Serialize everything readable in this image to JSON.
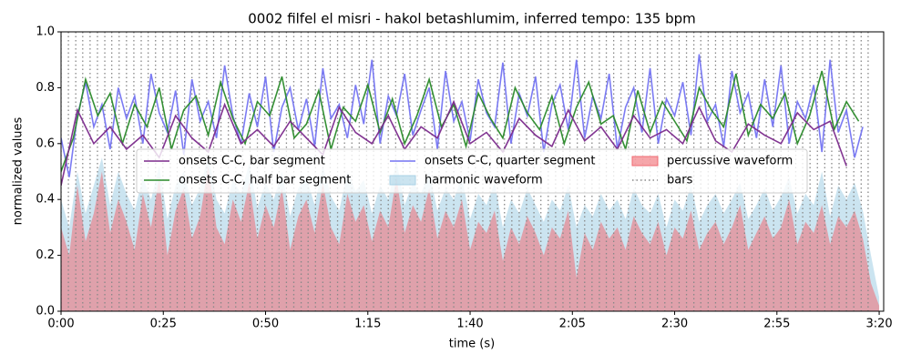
{
  "chart_data": {
    "type": "line",
    "title": "0002 filfel el misri - hakol betashlumim, inferred tempo: 135 bpm",
    "x_label": "time (s)",
    "y_label": "normalized values",
    "xlim": [
      0,
      201.1
    ],
    "ylim": [
      0,
      1
    ],
    "xticks": [
      {
        "value": 0,
        "label": "0:00"
      },
      {
        "value": 25,
        "label": "0:25"
      },
      {
        "value": 50,
        "label": "0:50"
      },
      {
        "value": 75,
        "label": "1:15"
      },
      {
        "value": 100,
        "label": "1:40"
      },
      {
        "value": 125,
        "label": "2:05"
      },
      {
        "value": 150,
        "label": "2:30"
      },
      {
        "value": 175,
        "label": "2:55"
      },
      {
        "value": 200,
        "label": "3:20"
      }
    ],
    "yticks": [
      {
        "value": 0,
        "label": "0.0"
      },
      {
        "value": 0.2,
        "label": "0.2"
      },
      {
        "value": 0.4,
        "label": "0.4"
      },
      {
        "value": 0.6,
        "label": "0.6"
      },
      {
        "value": 0.8,
        "label": "0.8"
      },
      {
        "value": 1,
        "label": "1.0"
      }
    ],
    "legend_position": "center",
    "series": [
      {
        "name": "onsets C-C, bar segment",
        "kind": "line",
        "color": "#7b2a8c",
        "x": [
          0,
          4,
          8,
          12,
          16,
          20,
          24,
          28,
          32,
          36,
          40,
          44,
          48,
          52,
          56,
          60,
          64,
          68,
          72,
          76,
          80,
          84,
          88,
          92,
          96,
          100,
          104,
          108,
          112,
          116,
          120,
          124,
          128,
          132,
          136,
          140,
          144,
          148,
          152,
          156,
          160,
          164,
          168,
          172,
          176,
          180,
          184,
          188,
          192
        ],
        "values": [
          0.45,
          0.72,
          0.6,
          0.66,
          0.58,
          0.63,
          0.55,
          0.7,
          0.62,
          0.57,
          0.74,
          0.6,
          0.65,
          0.59,
          0.68,
          0.62,
          0.56,
          0.73,
          0.64,
          0.6,
          0.7,
          0.58,
          0.66,
          0.62,
          0.75,
          0.6,
          0.64,
          0.57,
          0.69,
          0.63,
          0.59,
          0.72,
          0.61,
          0.66,
          0.58,
          0.7,
          0.62,
          0.65,
          0.6,
          0.73,
          0.61,
          0.57,
          0.67,
          0.63,
          0.6,
          0.71,
          0.65,
          0.68,
          0.52
        ]
      },
      {
        "name": "onsets C-C, half bar segment",
        "kind": "line",
        "color": "#2a8a2a",
        "x": [
          0,
          3,
          6,
          9,
          12,
          15,
          18,
          21,
          24,
          27,
          30,
          33,
          36,
          39,
          42,
          45,
          48,
          51,
          54,
          57,
          60,
          63,
          66,
          69,
          72,
          75,
          78,
          81,
          84,
          87,
          90,
          93,
          96,
          99,
          102,
          105,
          108,
          111,
          114,
          117,
          120,
          123,
          126,
          129,
          132,
          135,
          138,
          141,
          144,
          147,
          150,
          153,
          156,
          159,
          162,
          165,
          168,
          171,
          174,
          177,
          180,
          183,
          186,
          189,
          192,
          195
        ],
        "values": [
          0.5,
          0.62,
          0.83,
          0.7,
          0.78,
          0.6,
          0.74,
          0.66,
          0.8,
          0.58,
          0.72,
          0.77,
          0.63,
          0.82,
          0.69,
          0.6,
          0.75,
          0.7,
          0.84,
          0.62,
          0.67,
          0.79,
          0.58,
          0.73,
          0.68,
          0.81,
          0.64,
          0.76,
          0.6,
          0.7,
          0.83,
          0.66,
          0.74,
          0.59,
          0.78,
          0.69,
          0.62,
          0.8,
          0.71,
          0.65,
          0.77,
          0.6,
          0.73,
          0.82,
          0.67,
          0.7,
          0.58,
          0.79,
          0.64,
          0.75,
          0.68,
          0.61,
          0.8,
          0.72,
          0.66,
          0.85,
          0.63,
          0.74,
          0.69,
          0.78,
          0.6,
          0.7,
          0.86,
          0.65,
          0.75,
          0.68
        ]
      },
      {
        "name": "onsets C-C, quarter segment",
        "kind": "line",
        "color": "#7474f2",
        "x": [
          0,
          2,
          4,
          6,
          8,
          10,
          12,
          14,
          16,
          18,
          20,
          22,
          24,
          26,
          28,
          30,
          32,
          34,
          36,
          38,
          40,
          42,
          44,
          46,
          48,
          50,
          52,
          54,
          56,
          58,
          60,
          62,
          64,
          66,
          68,
          70,
          72,
          74,
          76,
          78,
          80,
          82,
          84,
          86,
          88,
          90,
          92,
          94,
          96,
          98,
          100,
          102,
          104,
          106,
          108,
          110,
          112,
          114,
          116,
          118,
          120,
          122,
          124,
          126,
          128,
          130,
          132,
          134,
          136,
          138,
          140,
          142,
          144,
          146,
          148,
          150,
          152,
          154,
          156,
          158,
          160,
          162,
          164,
          166,
          168,
          170,
          172,
          174,
          176,
          178,
          180,
          182,
          184,
          186,
          188,
          190,
          192,
          194,
          196
        ],
        "values": [
          0.62,
          0.48,
          0.7,
          0.82,
          0.66,
          0.74,
          0.58,
          0.8,
          0.69,
          0.77,
          0.6,
          0.85,
          0.71,
          0.64,
          0.79,
          0.56,
          0.83,
          0.68,
          0.75,
          0.62,
          0.88,
          0.7,
          0.6,
          0.78,
          0.66,
          0.84,
          0.57,
          0.73,
          0.8,
          0.65,
          0.76,
          0.59,
          0.87,
          0.69,
          0.74,
          0.62,
          0.81,
          0.67,
          0.9,
          0.6,
          0.77,
          0.7,
          0.85,
          0.63,
          0.72,
          0.8,
          0.58,
          0.86,
          0.68,
          0.75,
          0.61,
          0.83,
          0.71,
          0.66,
          0.89,
          0.6,
          0.78,
          0.7,
          0.84,
          0.57,
          0.74,
          0.81,
          0.65,
          0.9,
          0.62,
          0.77,
          0.69,
          0.85,
          0.58,
          0.73,
          0.8,
          0.64,
          0.87,
          0.6,
          0.76,
          0.7,
          0.82,
          0.63,
          0.92,
          0.68,
          0.74,
          0.59,
          0.86,
          0.71,
          0.78,
          0.62,
          0.83,
          0.66,
          0.88,
          0.6,
          0.75,
          0.69,
          0.81,
          0.57,
          0.9,
          0.64,
          0.72,
          0.55,
          0.66
        ]
      },
      {
        "name": "harmonic waveform",
        "kind": "area",
        "color": "#a9d2e6",
        "x": [
          0,
          2,
          4,
          6,
          8,
          10,
          12,
          14,
          16,
          18,
          20,
          22,
          24,
          26,
          28,
          30,
          32,
          34,
          36,
          38,
          40,
          42,
          44,
          46,
          48,
          50,
          52,
          54,
          56,
          58,
          60,
          62,
          64,
          66,
          68,
          70,
          72,
          74,
          76,
          78,
          80,
          82,
          84,
          86,
          88,
          90,
          92,
          94,
          96,
          98,
          100,
          102,
          104,
          106,
          108,
          110,
          112,
          114,
          116,
          118,
          120,
          122,
          124,
          126,
          128,
          130,
          132,
          134,
          136,
          138,
          140,
          142,
          144,
          146,
          148,
          150,
          152,
          154,
          156,
          158,
          160,
          162,
          164,
          166,
          168,
          170,
          172,
          174,
          176,
          178,
          180,
          182,
          184,
          186,
          188,
          190,
          192,
          194,
          196,
          198,
          200
        ],
        "values": [
          0.4,
          0.3,
          0.5,
          0.35,
          0.45,
          0.55,
          0.38,
          0.5,
          0.42,
          0.36,
          0.48,
          0.4,
          0.52,
          0.33,
          0.45,
          0.5,
          0.38,
          0.44,
          0.56,
          0.4,
          0.35,
          0.47,
          0.42,
          0.53,
          0.37,
          0.46,
          0.4,
          0.5,
          0.34,
          0.44,
          0.48,
          0.38,
          0.52,
          0.41,
          0.36,
          0.5,
          0.43,
          0.47,
          0.35,
          0.45,
          0.4,
          0.54,
          0.38,
          0.46,
          0.42,
          0.5,
          0.36,
          0.44,
          0.4,
          0.48,
          0.33,
          0.42,
          0.38,
          0.46,
          0.3,
          0.4,
          0.35,
          0.44,
          0.38,
          0.32,
          0.4,
          0.36,
          0.45,
          0.3,
          0.38,
          0.34,
          0.42,
          0.36,
          0.4,
          0.33,
          0.44,
          0.38,
          0.35,
          0.42,
          0.3,
          0.4,
          0.36,
          0.45,
          0.32,
          0.38,
          0.42,
          0.35,
          0.4,
          0.46,
          0.33,
          0.38,
          0.44,
          0.36,
          0.41,
          0.48,
          0.35,
          0.42,
          0.38,
          0.5,
          0.34,
          0.45,
          0.4,
          0.46,
          0.36,
          0.2,
          0.05
        ]
      },
      {
        "name": "percussive waveform",
        "kind": "area",
        "color": "#f06a72",
        "x": [
          0,
          2,
          4,
          6,
          8,
          10,
          12,
          14,
          16,
          18,
          20,
          22,
          24,
          26,
          28,
          30,
          32,
          34,
          36,
          38,
          40,
          42,
          44,
          46,
          48,
          50,
          52,
          54,
          56,
          58,
          60,
          62,
          64,
          66,
          68,
          70,
          72,
          74,
          76,
          78,
          80,
          82,
          84,
          86,
          88,
          90,
          92,
          94,
          96,
          98,
          100,
          102,
          104,
          106,
          108,
          110,
          112,
          114,
          116,
          118,
          120,
          122,
          124,
          126,
          128,
          130,
          132,
          134,
          136,
          138,
          140,
          142,
          144,
          146,
          148,
          150,
          152,
          154,
          156,
          158,
          160,
          162,
          164,
          166,
          168,
          170,
          172,
          174,
          176,
          178,
          180,
          182,
          184,
          186,
          188,
          190,
          192,
          194,
          196,
          198,
          200
        ],
        "values": [
          0.3,
          0.2,
          0.45,
          0.25,
          0.35,
          0.5,
          0.28,
          0.4,
          0.32,
          0.22,
          0.42,
          0.3,
          0.48,
          0.2,
          0.36,
          0.44,
          0.26,
          0.34,
          0.52,
          0.3,
          0.24,
          0.4,
          0.32,
          0.46,
          0.26,
          0.38,
          0.3,
          0.44,
          0.22,
          0.34,
          0.4,
          0.28,
          0.46,
          0.3,
          0.24,
          0.42,
          0.32,
          0.38,
          0.25,
          0.36,
          0.3,
          0.48,
          0.28,
          0.38,
          0.32,
          0.44,
          0.26,
          0.36,
          0.3,
          0.4,
          0.22,
          0.32,
          0.28,
          0.36,
          0.18,
          0.3,
          0.24,
          0.34,
          0.28,
          0.2,
          0.3,
          0.26,
          0.36,
          0.12,
          0.28,
          0.22,
          0.32,
          0.26,
          0.3,
          0.22,
          0.34,
          0.28,
          0.24,
          0.32,
          0.2,
          0.3,
          0.26,
          0.36,
          0.22,
          0.28,
          0.32,
          0.24,
          0.3,
          0.38,
          0.22,
          0.28,
          0.34,
          0.26,
          0.3,
          0.4,
          0.24,
          0.32,
          0.28,
          0.38,
          0.24,
          0.34,
          0.3,
          0.36,
          0.26,
          0.1,
          0.02
        ]
      }
    ],
    "vlines": {
      "name": "bars",
      "color": "#888888",
      "x": [
        0,
        1.8,
        3.6,
        5.3,
        7.1,
        8.9,
        10.7,
        12.4,
        14.2,
        16,
        17.8,
        19.6,
        21.3,
        23.1,
        24.9,
        26.7,
        28.4,
        30.2,
        32,
        33.8,
        35.6,
        37.3,
        39.1,
        40.9,
        42.7,
        44.4,
        46.2,
        48,
        49.8,
        51.6,
        53.3,
        55.1,
        56.9,
        58.7,
        60.4,
        62.2,
        64,
        65.8,
        67.6,
        69.3,
        71.1,
        72.9,
        74.7,
        76.4,
        78.2,
        80,
        81.8,
        83.6,
        85.3,
        87.1,
        88.9,
        90.7,
        92.4,
        94.2,
        96,
        97.8,
        99.6,
        101.3,
        103.1,
        104.9,
        106.7,
        108.4,
        110.2,
        112,
        113.8,
        115.6,
        117.3,
        119.1,
        120.9,
        122.7,
        124.4,
        126.2,
        128,
        129.8,
        131.6,
        133.3,
        135.1,
        136.9,
        138.7,
        140.4,
        142.2,
        144,
        145.8,
        147.6,
        149.3,
        151.1,
        152.9,
        154.7,
        156.4,
        158.2,
        160,
        161.8,
        163.6,
        165.3,
        167.1,
        168.9,
        170.7,
        172.4,
        174.2,
        176,
        177.8,
        179.6,
        181.3,
        183.1,
        184.9,
        186.7,
        188.4,
        190.2,
        192,
        193.8,
        195.6,
        197.3
      ]
    }
  }
}
